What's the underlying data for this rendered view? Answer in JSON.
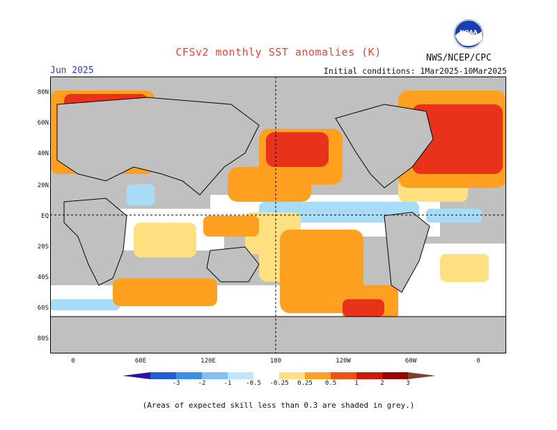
{
  "header": {
    "title": "CFSv2 monthly SST anomalies (K)",
    "agency": "NWS/NCEP/CPC",
    "month": "Jun 2025",
    "initial_conditions": "Initial conditions: 1Mar2025-10Mar2025",
    "logo_text": "NOAA"
  },
  "map": {
    "projection": "cylindrical equidistant",
    "lat_labels": [
      "80N",
      "60N",
      "40N",
      "20N",
      "EQ",
      "20S",
      "40S",
      "60S",
      "80S"
    ],
    "lon_labels": [
      "0",
      "60E",
      "120E",
      "180",
      "120W",
      "60W",
      "0"
    ],
    "reference_lines": [
      "EQ",
      "180"
    ],
    "land_color": "#c0c0c0",
    "low_skill_color": "#c0c0c0"
  },
  "colorbar": {
    "labels": [
      "-3",
      "-2",
      "-1",
      "-0.5",
      "-0.25",
      "0.25",
      "0.5",
      "1",
      "2",
      "3"
    ],
    "colors": [
      "#2a14a0",
      "#1f5fd6",
      "#3b8ee6",
      "#7ec0f2",
      "#bfe6fa",
      "#ffffff",
      "#ffe080",
      "#ffa020",
      "#f05010",
      "#d01808",
      "#9a0000",
      "#7a4030"
    ]
  },
  "note": "(Areas of expected skill less than 0.3 are shaded in grey.)"
}
